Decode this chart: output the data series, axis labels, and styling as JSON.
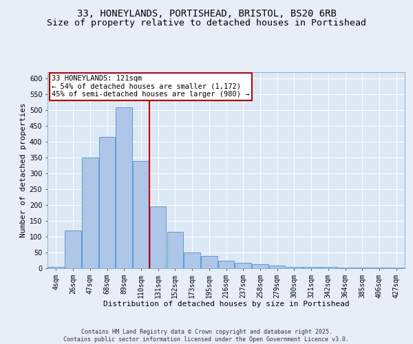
{
  "title_line1": "33, HONEYLANDS, PORTISHEAD, BRISTOL, BS20 6RB",
  "title_line2": "Size of property relative to detached houses in Portishead",
  "xlabel": "Distribution of detached houses by size in Portishead",
  "ylabel": "Number of detached properties",
  "footer": "Contains HM Land Registry data © Crown copyright and database right 2025.\nContains public sector information licensed under the Open Government Licence v3.0.",
  "categories": [
    "4sqm",
    "26sqm",
    "47sqm",
    "68sqm",
    "89sqm",
    "110sqm",
    "131sqm",
    "152sqm",
    "173sqm",
    "195sqm",
    "216sqm",
    "237sqm",
    "258sqm",
    "279sqm",
    "300sqm",
    "321sqm",
    "342sqm",
    "364sqm",
    "385sqm",
    "406sqm",
    "427sqm"
  ],
  "values": [
    5,
    120,
    350,
    415,
    510,
    340,
    195,
    115,
    50,
    40,
    25,
    18,
    12,
    8,
    4,
    4,
    4,
    2,
    2,
    2,
    2
  ],
  "bar_color": "#aec6e8",
  "bar_edge_color": "#5b9bd5",
  "plot_bg_color": "#dce9f5",
  "fig_bg_color": "#e8eef8",
  "grid_color": "#ffffff",
  "vline_color": "#cc0000",
  "vline_x": 5.5,
  "annotation_text": "33 HONEYLANDS: 121sqm\n← 54% of detached houses are smaller (1,172)\n45% of semi-detached houses are larger (980) →",
  "annotation_box_edgecolor": "#cc0000",
  "ylim": [
    0,
    620
  ],
  "yticks": [
    0,
    50,
    100,
    150,
    200,
    250,
    300,
    350,
    400,
    450,
    500,
    550,
    600
  ],
  "title_fontsize": 10,
  "subtitle_fontsize": 9.5,
  "label_fontsize": 8,
  "tick_fontsize": 7,
  "footer_fontsize": 6
}
